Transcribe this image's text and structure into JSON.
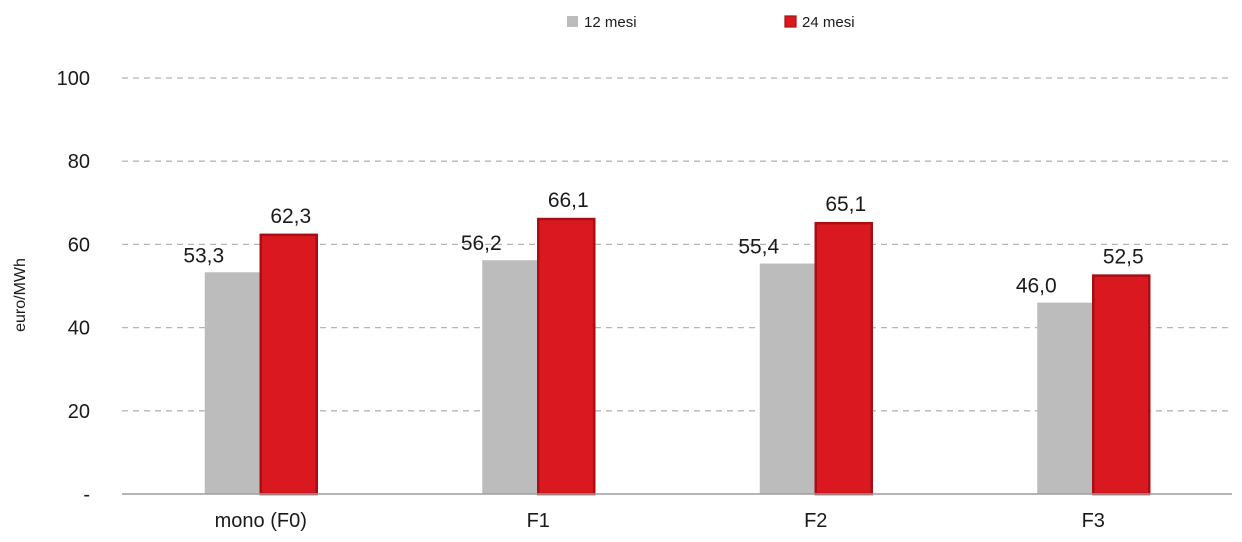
{
  "colors": {
    "series_12": "#bcbcbc",
    "series_24": "#d9191f",
    "series_24_border": "#a80f14",
    "grid": "#b5b5b5",
    "axis": "#9e9e9e"
  },
  "chart_data": {
    "type": "bar",
    "title": "",
    "xlabel": "",
    "ylabel": "euro/MWh",
    "ylim": [
      0,
      100
    ],
    "yticks": [
      0,
      20,
      40,
      60,
      80,
      100
    ],
    "ytick_labels": [
      "-",
      "20",
      "40",
      "60",
      "80",
      "100"
    ],
    "grid": true,
    "legend_position": "top-center",
    "categories": [
      "mono (F0)",
      "F1",
      "F2",
      "F3"
    ],
    "series": [
      {
        "name": "12 mesi",
        "values": [
          53.3,
          56.2,
          55.4,
          46.0
        ],
        "labels": [
          "53,3",
          "56,2",
          "55,4",
          "46,0"
        ]
      },
      {
        "name": "24 mesi",
        "values": [
          62.3,
          66.1,
          65.1,
          52.5
        ],
        "labels": [
          "62,3",
          "66,1",
          "65,1",
          "52,5"
        ]
      }
    ]
  }
}
